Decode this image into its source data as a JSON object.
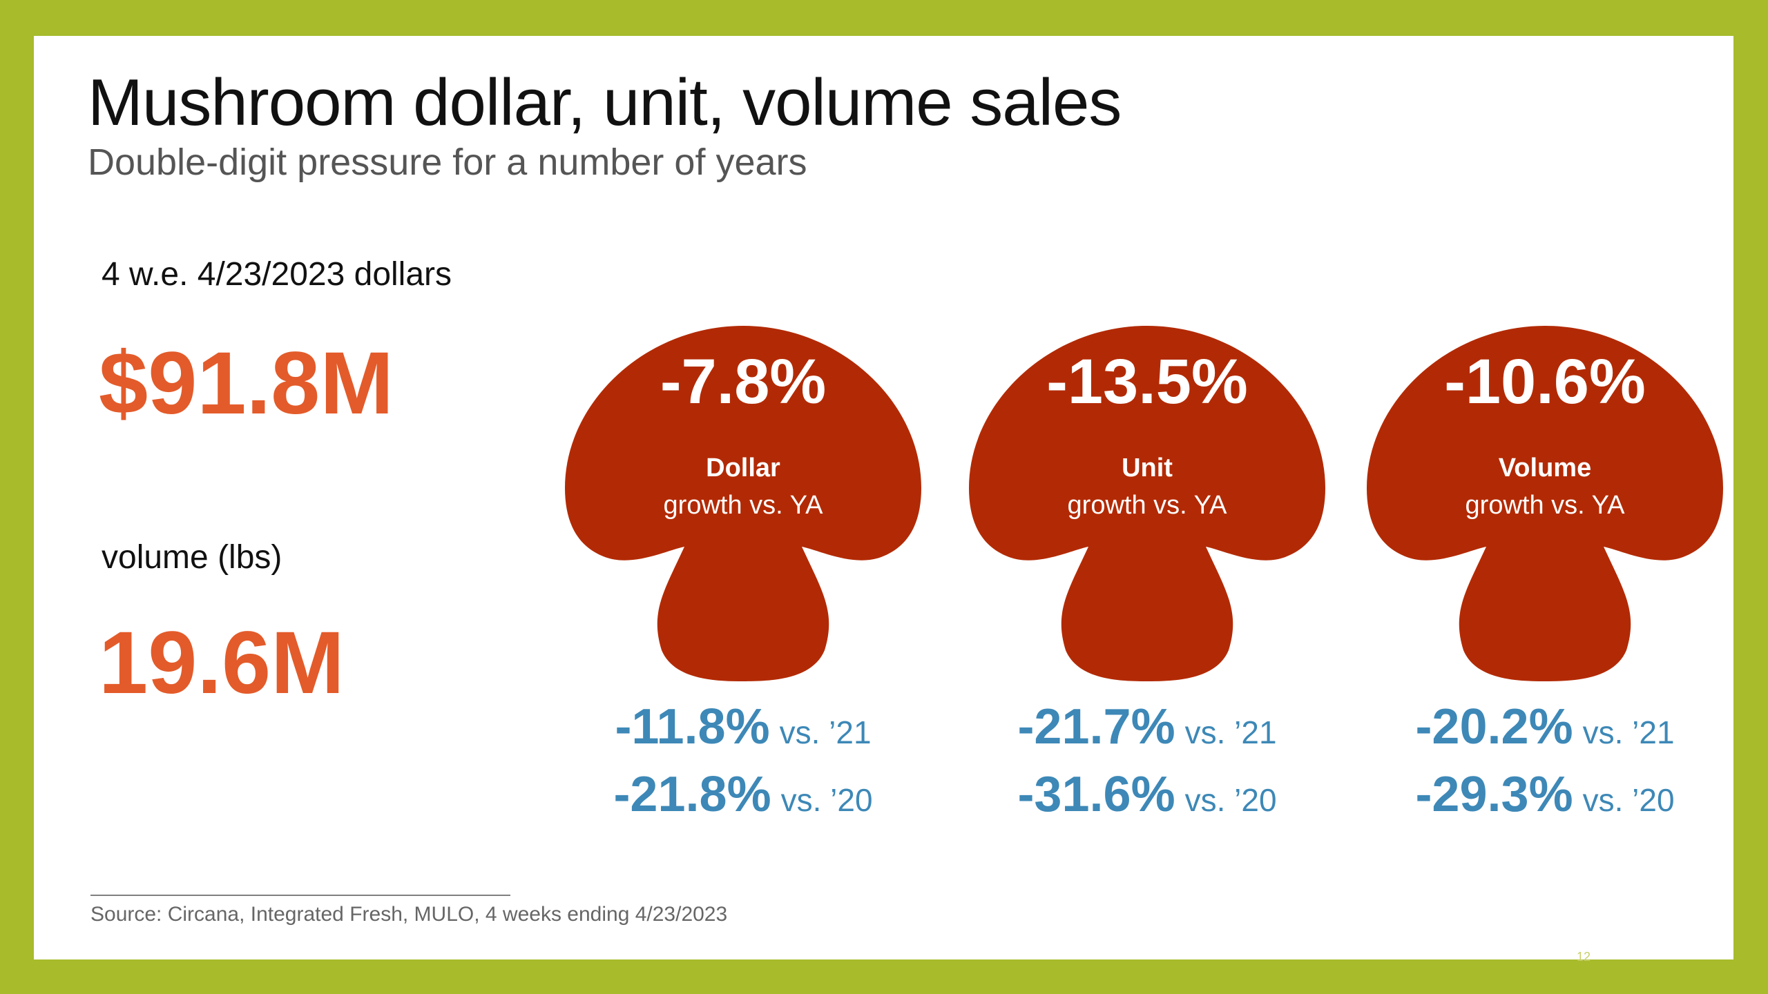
{
  "header": {
    "title": "Mushroom dollar, unit, volume sales",
    "subtitle": "Double-digit pressure for a number of years"
  },
  "metrics": [
    {
      "label": "4 w.e. 4/23/2023 dollars",
      "value": "$91.8M"
    },
    {
      "label": "volume (lbs)",
      "value": "19.6M"
    }
  ],
  "mushrooms": [
    {
      "pct": "-7.8%",
      "name": "Dollar",
      "growth": "growth vs. YA",
      "comparisons": [
        {
          "value": "-11.8%",
          "vs": "vs. ’21"
        },
        {
          "value": "-21.8%",
          "vs": "vs. ’20"
        }
      ]
    },
    {
      "pct": "-13.5%",
      "name": "Unit",
      "growth": "growth vs. YA",
      "comparisons": [
        {
          "value": "-21.7%",
          "vs": "vs. ’21"
        },
        {
          "value": "-31.6%",
          "vs": "vs. ’20"
        }
      ]
    },
    {
      "pct": "-10.6%",
      "name": "Volume",
      "growth": "growth vs. YA",
      "comparisons": [
        {
          "value": "-20.2%",
          "vs": "vs. ’21"
        },
        {
          "value": "-29.3%",
          "vs": "vs. ’20"
        }
      ]
    }
  ],
  "footer": {
    "source": "Source: Circana, Integrated Fresh, MULO, 4 weeks ending 4/23/2023",
    "page_number": "12"
  },
  "colors": {
    "frame": "#a7bb2b",
    "accent_orange": "#e35b2a",
    "mushroom_red": "#b22a05",
    "comparison_blue": "#3d88b7"
  }
}
